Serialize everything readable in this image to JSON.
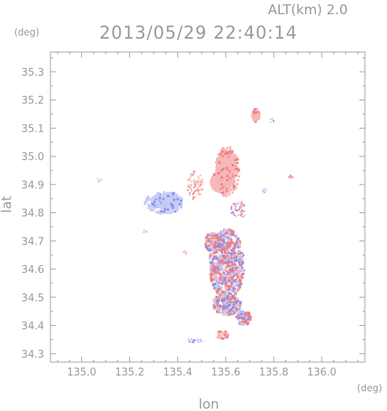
{
  "header": {
    "altitude_label": "ALT(km) 2.0",
    "timestamp": "2013/05/29 22:40:14"
  },
  "chart_data": {
    "type": "heatmap",
    "title": "2013/05/29 22:40:14",
    "subtitle": "ALT(km) 2.0",
    "xlabel": "lon",
    "ylabel": "lat",
    "xunit": "(deg)",
    "yunit": "(deg)",
    "xlim": [
      134.87,
      136.18
    ],
    "ylim": [
      34.27,
      35.37
    ],
    "xticks": [
      135.0,
      135.2,
      135.4,
      135.6,
      135.8,
      136.0
    ],
    "xtick_labels": [
      "135.0",
      "135.2",
      "135.4",
      "135.6",
      "135.8",
      "136.0"
    ],
    "yticks": [
      34.3,
      34.4,
      34.5,
      34.6,
      34.7,
      34.8,
      34.9,
      35.0,
      35.1,
      35.2,
      35.3
    ],
    "ytick_labels": [
      "34.3",
      "34.4",
      "34.5",
      "34.6",
      "34.7",
      "34.8",
      "34.9",
      "35.0",
      "35.1",
      "35.2",
      "35.3"
    ],
    "grid": false,
    "colors": {
      "strong_positive": "#f08080",
      "weak_positive": "#f6b8b8",
      "weak_negative": "#c8cdf5",
      "strong_negative": "#8a8ff0"
    },
    "echo_regions": [
      {
        "name": "north-cell",
        "lon": 135.6,
        "lat": 34.96,
        "polarity": "positive"
      },
      {
        "name": "northeast-cell",
        "lon": 135.72,
        "lat": 35.15,
        "polarity": "positive"
      },
      {
        "name": "west-cell",
        "lon": 135.34,
        "lat": 34.84,
        "polarity": "negative"
      },
      {
        "name": "central-cluster",
        "lon": 135.62,
        "lat": 34.6,
        "polarity": "mixed"
      },
      {
        "name": "south-cluster",
        "lon": 135.62,
        "lat": 34.43,
        "polarity": "mixed"
      }
    ]
  }
}
